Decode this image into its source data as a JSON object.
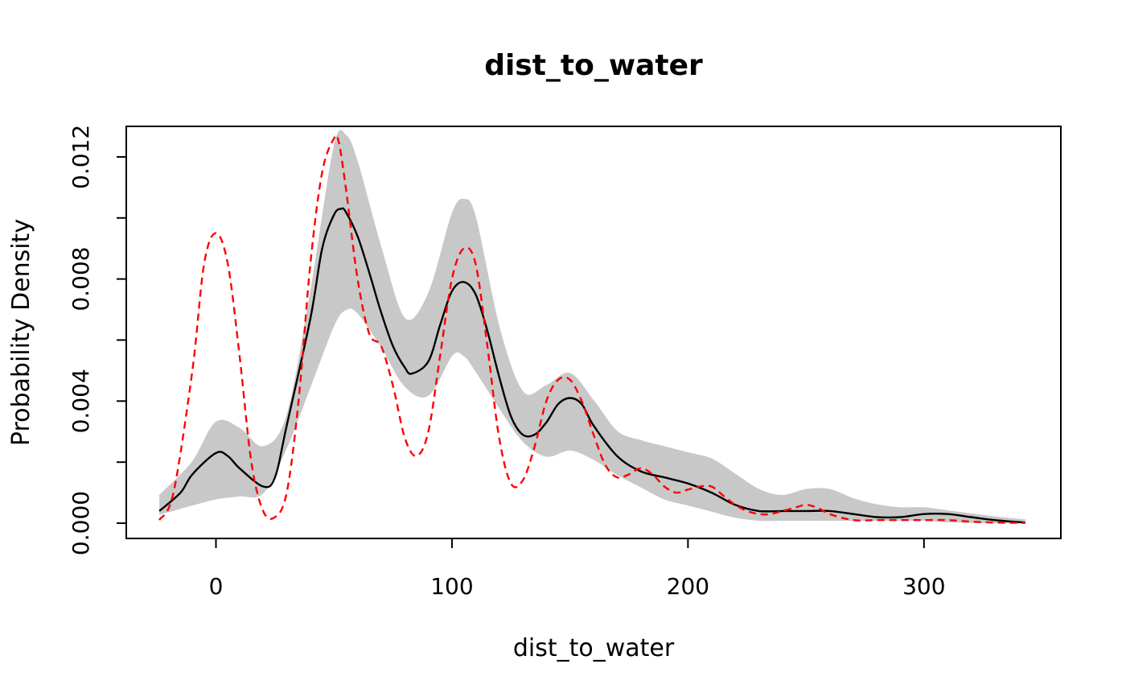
{
  "chart_data": {
    "type": "line",
    "title": "dist_to_water",
    "xlabel": "dist_to_water",
    "ylabel": "Probability Density",
    "xlim": [
      -38,
      358
    ],
    "ylim": [
      -0.0005,
      0.013
    ],
    "x_ticks": [
      0,
      100,
      200,
      300
    ],
    "x_tick_labels": [
      "0",
      "100",
      "200",
      "300"
    ],
    "y_ticks": [
      0.0,
      0.002,
      0.004,
      0.006,
      0.008,
      0.01,
      0.012
    ],
    "y_tick_labels": [
      "0.000",
      "",
      "0.004",
      "",
      "0.008",
      "",
      "0.012"
    ],
    "grid": false,
    "legend": "none",
    "colors": {
      "simulated": "#c8c8c8",
      "mean": "#000000",
      "observed": "#ff0000"
    },
    "envelope": {
      "x": [
        -24,
        -10,
        0,
        10,
        20,
        30,
        40,
        50,
        55,
        60,
        70,
        80,
        90,
        100,
        105,
        110,
        120,
        130,
        140,
        150,
        160,
        170,
        180,
        190,
        200,
        210,
        220,
        230,
        240,
        250,
        260,
        270,
        280,
        290,
        300,
        310,
        320,
        330,
        343
      ],
      "lower": [
        0.0003,
        0.0006,
        0.0008,
        0.0009,
        0.001,
        0.0025,
        0.0045,
        0.0065,
        0.007,
        0.0069,
        0.0058,
        0.0045,
        0.0042,
        0.0055,
        0.0055,
        0.005,
        0.0038,
        0.0027,
        0.0022,
        0.0024,
        0.0021,
        0.0016,
        0.0012,
        0.0008,
        0.0006,
        0.0004,
        0.0002,
        0.0001,
        0.0001,
        0.0001,
        0.0001,
        0.0001,
        0.0001,
        0.0001,
        0.0001,
        5e-05,
        3e-05,
        2e-05,
        1e-05
      ],
      "upper": [
        0.0009,
        0.002,
        0.0033,
        0.0031,
        0.0025,
        0.0035,
        0.0075,
        0.0123,
        0.0127,
        0.0118,
        0.009,
        0.0067,
        0.0075,
        0.0101,
        0.0106,
        0.01,
        0.0064,
        0.0043,
        0.0045,
        0.0049,
        0.004,
        0.003,
        0.0027,
        0.0025,
        0.0023,
        0.0021,
        0.0016,
        0.0011,
        0.0009,
        0.0011,
        0.0011,
        0.0008,
        0.0006,
        0.0005,
        0.0005,
        0.0004,
        0.0003,
        0.0002,
        0.0001
      ]
    },
    "series": [
      {
        "name": "",
        "role": "mean",
        "x": [
          -24,
          -15,
          -10,
          0,
          5,
          10,
          20,
          25,
          30,
          40,
          45,
          50,
          53,
          55,
          60,
          65,
          70,
          75,
          80,
          83,
          90,
          95,
          100,
          105,
          110,
          115,
          120,
          125,
          130,
          135,
          140,
          145,
          150,
          155,
          160,
          170,
          180,
          190,
          200,
          210,
          220,
          230,
          240,
          250,
          260,
          270,
          280,
          290,
          300,
          310,
          320,
          330,
          343
        ],
        "y": [
          0.0004,
          0.001,
          0.0016,
          0.0023,
          0.0022,
          0.0018,
          0.0012,
          0.0015,
          0.0032,
          0.0067,
          0.009,
          0.0101,
          0.0103,
          0.0102,
          0.0094,
          0.0082,
          0.0069,
          0.0058,
          0.0051,
          0.0049,
          0.0053,
          0.0065,
          0.0076,
          0.0079,
          0.0075,
          0.0063,
          0.0048,
          0.0035,
          0.0029,
          0.0029,
          0.0033,
          0.0039,
          0.0041,
          0.0039,
          0.0032,
          0.0022,
          0.0017,
          0.0015,
          0.0013,
          0.001,
          0.0006,
          0.0004,
          0.0004,
          0.0004,
          0.0004,
          0.0003,
          0.0002,
          0.0002,
          0.0003,
          0.0003,
          0.0002,
          0.0001,
          2e-05
        ]
      },
      {
        "name": "",
        "role": "observed",
        "x": [
          -24,
          -18,
          -10,
          -5,
          0,
          5,
          10,
          15,
          20,
          25,
          30,
          35,
          40,
          45,
          50,
          52,
          55,
          60,
          65,
          70,
          75,
          80,
          85,
          90,
          95,
          100,
          105,
          110,
          115,
          120,
          125,
          130,
          135,
          140,
          145,
          150,
          155,
          160,
          165,
          170,
          175,
          180,
          185,
          190,
          195,
          200,
          205,
          210,
          215,
          220,
          225,
          230,
          235,
          240,
          245,
          250,
          255,
          260,
          270,
          280,
          290,
          300,
          310,
          320,
          330,
          343
        ],
        "y": [
          0.0001,
          0.001,
          0.005,
          0.0085,
          0.0095,
          0.0085,
          0.0055,
          0.002,
          0.0004,
          0.0002,
          0.001,
          0.004,
          0.0085,
          0.0115,
          0.0126,
          0.0125,
          0.011,
          0.008,
          0.0062,
          0.0058,
          0.0045,
          0.0028,
          0.0022,
          0.003,
          0.0055,
          0.008,
          0.009,
          0.0085,
          0.0058,
          0.0028,
          0.0013,
          0.0014,
          0.0025,
          0.004,
          0.0047,
          0.0047,
          0.004,
          0.0029,
          0.0019,
          0.0015,
          0.0016,
          0.0018,
          0.0016,
          0.0012,
          0.001,
          0.0011,
          0.0012,
          0.0012,
          0.0009,
          0.0006,
          0.0004,
          0.0003,
          0.0003,
          0.0004,
          0.0005,
          0.0006,
          0.0005,
          0.0003,
          0.0001,
          0.0001,
          0.0001,
          0.0001,
          0.0001,
          5e-05,
          2e-05,
          1e-05
        ]
      }
    ]
  }
}
